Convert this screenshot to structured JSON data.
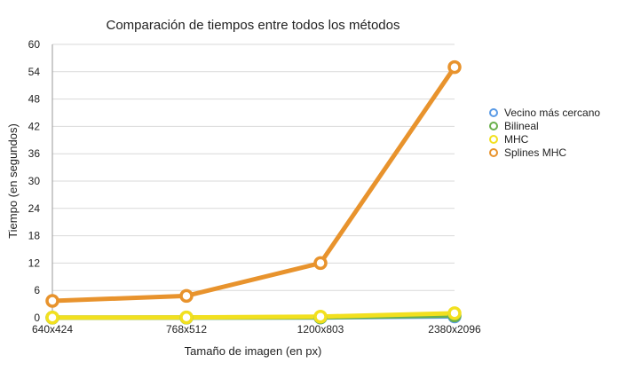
{
  "chart_data": {
    "type": "line",
    "title": "Comparación de tiempos entre todos los métodos",
    "xlabel": "Tamaño de imagen (en px)",
    "ylabel": "Tiempo (en segundos)",
    "categories": [
      "640x424",
      "768x512",
      "1200x803",
      "2380x2096"
    ],
    "ylim": [
      0,
      60
    ],
    "yticks": [
      0,
      6,
      12,
      18,
      24,
      30,
      36,
      42,
      48,
      54,
      60
    ],
    "grid": true,
    "legend_position": "right",
    "series": [
      {
        "name": "Vecino más cercano",
        "color": "#5b9be6",
        "values": [
          0.02,
          0.03,
          0.06,
          0.3
        ]
      },
      {
        "name": "Bilineal",
        "color": "#6ab04c",
        "values": [
          0.03,
          0.04,
          0.1,
          0.5
        ]
      },
      {
        "name": "MHC",
        "color": "#f2e01f",
        "values": [
          0.05,
          0.07,
          0.25,
          1.0
        ]
      },
      {
        "name": "Splines MHC",
        "color": "#e8932d",
        "values": [
          3.7,
          4.8,
          12.0,
          55.0
        ]
      }
    ]
  }
}
